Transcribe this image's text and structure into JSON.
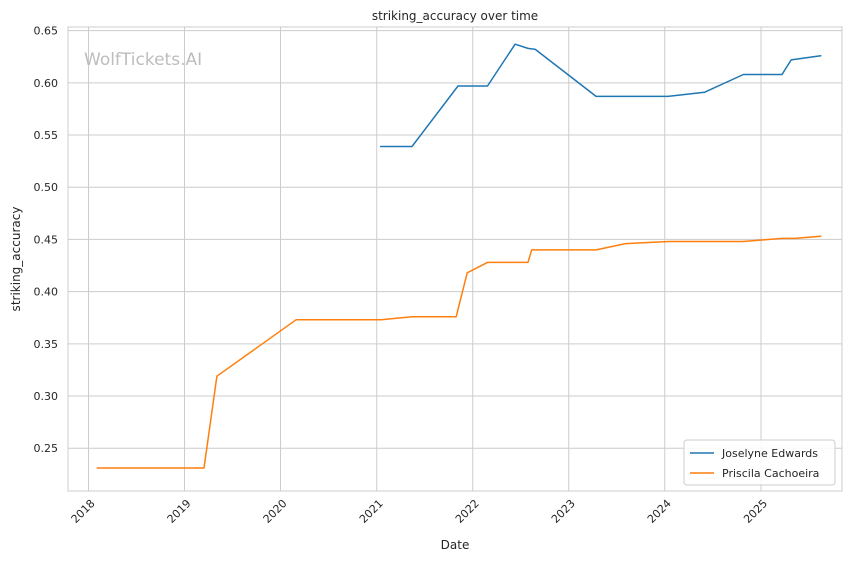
{
  "watermark": "WolfTickets.AI",
  "chart_data": {
    "type": "line",
    "title": "striking_accuracy over time",
    "xlabel": "Date",
    "ylabel": "striking_accuracy",
    "x_ticks": [
      "2018",
      "2019",
      "2020",
      "2021",
      "2022",
      "2023",
      "2024",
      "2025"
    ],
    "y_ticks": [
      "0.25",
      "0.30",
      "0.35",
      "0.40",
      "0.45",
      "0.50",
      "0.55",
      "0.60",
      "0.65"
    ],
    "xlim": [
      "2017-10-15",
      "2025-11-05"
    ],
    "ylim": [
      0.209,
      0.6535
    ],
    "grid": true,
    "legend_position": "lower-right",
    "series": [
      {
        "name": "Joselyne Edwards",
        "color": "#1f77b4",
        "points": [
          [
            "2021-01-16",
            0.539
          ],
          [
            "2021-05-15",
            0.539
          ],
          [
            "2021-11-06",
            0.597
          ],
          [
            "2022-02-26",
            0.597
          ],
          [
            "2022-06-11",
            0.637
          ],
          [
            "2022-07-30",
            0.633
          ],
          [
            "2022-08-27",
            0.632
          ],
          [
            "2023-04-15",
            0.587
          ],
          [
            "2023-09-16",
            0.587
          ],
          [
            "2024-01-13",
            0.587
          ],
          [
            "2024-06-01",
            0.591
          ],
          [
            "2024-10-26",
            0.608
          ],
          [
            "2025-03-22",
            0.608
          ],
          [
            "2025-04-26",
            0.622
          ],
          [
            "2025-08-16",
            0.626
          ]
        ]
      },
      {
        "name": "Priscila Cachoeira",
        "color": "#ff7f0e",
        "points": [
          [
            "2018-02-03",
            0.231
          ],
          [
            "2019-03-16",
            0.231
          ],
          [
            "2019-05-04",
            0.319
          ],
          [
            "2020-02-29",
            0.373
          ],
          [
            "2021-01-16",
            0.373
          ],
          [
            "2021-05-15",
            0.376
          ],
          [
            "2021-10-30",
            0.376
          ],
          [
            "2021-12-11",
            0.418
          ],
          [
            "2022-02-26",
            0.428
          ],
          [
            "2022-07-30",
            0.428
          ],
          [
            "2022-08-13",
            0.44
          ],
          [
            "2023-04-15",
            0.44
          ],
          [
            "2023-08-05",
            0.446
          ],
          [
            "2024-01-20",
            0.448
          ],
          [
            "2024-10-26",
            0.448
          ],
          [
            "2025-03-22",
            0.451
          ],
          [
            "2025-05-10",
            0.451
          ],
          [
            "2025-08-16",
            0.453
          ]
        ]
      }
    ]
  }
}
